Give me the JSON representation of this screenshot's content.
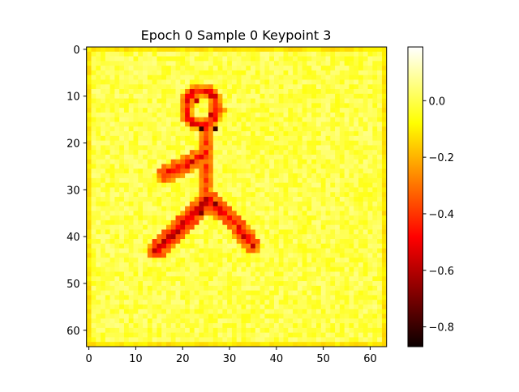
{
  "chart_data": {
    "type": "heatmap",
    "title": "Epoch 0 Sample 0 Keypoint 3",
    "xlabel": "",
    "ylabel": "",
    "grid_size": [
      64,
      64
    ],
    "xlim": [
      0,
      63
    ],
    "ylim": [
      63,
      0
    ],
    "x_ticks": [
      0,
      10,
      20,
      30,
      40,
      50,
      60
    ],
    "y_ticks": [
      0,
      10,
      20,
      30,
      40,
      50,
      60
    ],
    "colormap": "hot",
    "colorbar": {
      "vmin": -0.87,
      "vmax": 0.19,
      "ticks": [
        0.0,
        -0.2,
        -0.4,
        -0.6,
        -0.8
      ],
      "tick_labels": [
        "0.0",
        "−0.2",
        "−0.4",
        "−0.6",
        "−0.8"
      ]
    },
    "background_value": 0.0,
    "border_value": -0.12,
    "segments": [
      {
        "name": "body",
        "points": [
          [
            25,
            16
          ],
          [
            25,
            27
          ],
          [
            25,
            32
          ]
        ],
        "value": -0.35
      },
      {
        "name": "arm",
        "points": [
          [
            16,
            27
          ],
          [
            25,
            22
          ]
        ],
        "value": -0.45
      },
      {
        "name": "left-leg",
        "points": [
          [
            25,
            32
          ],
          [
            20,
            37
          ],
          [
            14,
            43
          ]
        ],
        "value": -0.55
      },
      {
        "name": "right-leg",
        "points": [
          [
            25,
            32
          ],
          [
            32,
            38
          ],
          [
            35,
            42
          ]
        ],
        "value": -0.5
      }
    ],
    "head": {
      "center": [
        24,
        12.5
      ],
      "radius": 3.5,
      "value": -0.45
    },
    "dark_pixels": [
      {
        "x": 24,
        "y": 17,
        "value": -0.8
      },
      {
        "x": 27,
        "y": 17,
        "value": -0.8
      },
      {
        "x": 23,
        "y": 11,
        "value": -0.6
      },
      {
        "x": 26,
        "y": 14,
        "value": -0.6
      },
      {
        "x": 24,
        "y": 35,
        "value": -0.7
      },
      {
        "x": 27,
        "y": 33,
        "value": -0.7
      },
      {
        "x": 17,
        "y": 40,
        "value": -0.6
      },
      {
        "x": 33,
        "y": 40,
        "value": -0.6
      },
      {
        "x": 35,
        "y": 42,
        "value": -0.6
      },
      {
        "x": 14,
        "y": 43,
        "value": -0.6
      },
      {
        "x": 22,
        "y": 24,
        "value": -0.6
      }
    ]
  }
}
